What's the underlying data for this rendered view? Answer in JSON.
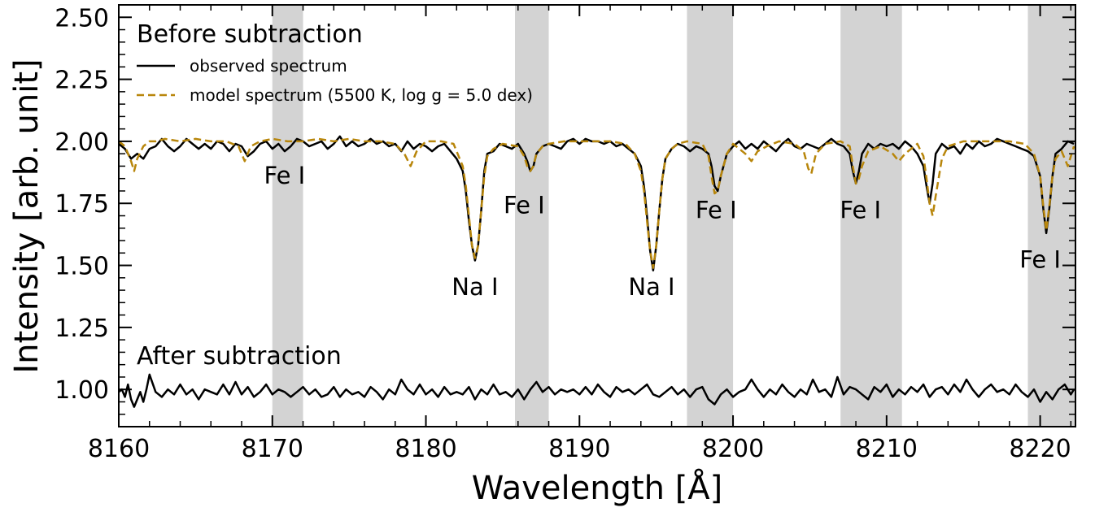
{
  "chart_data": {
    "type": "line",
    "xlabel": "Wavelength [Å]",
    "ylabel": "Intensity [arb. unit]",
    "xlim": [
      8160,
      8222.3
    ],
    "ylim": [
      0.85,
      2.55
    ],
    "x_ticks": [
      "8160",
      "8170",
      "8180",
      "8190",
      "8200",
      "8210",
      "8220"
    ],
    "x_tick_values": [
      8160,
      8170,
      8180,
      8190,
      8200,
      8210,
      8220
    ],
    "y_ticks": [
      "1.00",
      "1.25",
      "1.50",
      "1.75",
      "2.00",
      "2.25",
      "2.50"
    ],
    "y_tick_values": [
      1.0,
      1.25,
      1.5,
      1.75,
      2.0,
      2.25,
      2.5
    ],
    "grid": false,
    "legend_position": "top-left",
    "panel_labels": {
      "before": "Before subtraction",
      "after": "After subtraction"
    },
    "shaded_bands": [
      {
        "x0": 8170.0,
        "x1": 8172.0
      },
      {
        "x0": 8185.8,
        "x1": 8188.0
      },
      {
        "x0": 8197.0,
        "x1": 8200.0
      },
      {
        "x0": 8207.0,
        "x1": 8211.0
      },
      {
        "x0": 8219.2,
        "x1": 8222.3
      }
    ],
    "line_labels": [
      {
        "text": "Fe I",
        "x": 8170.8,
        "y": 1.83
      },
      {
        "text": "Fe I",
        "x": 8186.4,
        "y": 1.71
      },
      {
        "text": "Fe I",
        "x": 8198.9,
        "y": 1.69
      },
      {
        "text": "Fe I",
        "x": 8208.3,
        "y": 1.69
      },
      {
        "text": "Fe I",
        "x": 8220.0,
        "y": 1.49
      },
      {
        "text": "Na I",
        "x": 8183.2,
        "y": 1.38
      },
      {
        "text": "Na I",
        "x": 8194.7,
        "y": 1.38
      }
    ],
    "series": [
      {
        "name": "observed spectrum",
        "color": "#000000",
        "style": "solid",
        "x": [
          8160.0,
          8160.4,
          8160.8,
          8161.2,
          8161.6,
          8162.0,
          8162.4,
          8162.8,
          8163.2,
          8163.6,
          8164.0,
          8164.4,
          8164.8,
          8165.2,
          8165.6,
          8166.0,
          8166.4,
          8166.8,
          8167.2,
          8167.6,
          8168.0,
          8168.4,
          8168.8,
          8169.2,
          8169.6,
          8170.0,
          8170.4,
          8170.8,
          8171.2,
          8171.6,
          8172.0,
          8172.4,
          8172.8,
          8173.2,
          8173.6,
          8174.0,
          8174.4,
          8174.8,
          8175.2,
          8175.6,
          8176.0,
          8176.4,
          8176.8,
          8177.2,
          8177.6,
          8178.0,
          8178.4,
          8178.8,
          8179.2,
          8179.6,
          8180.0,
          8180.4,
          8180.8,
          8181.2,
          8181.6,
          8182.0,
          8182.4,
          8182.6,
          8182.8,
          8183.0,
          8183.2,
          8183.4,
          8183.6,
          8183.8,
          8184.0,
          8184.4,
          8184.8,
          8185.2,
          8185.6,
          8186.0,
          8186.4,
          8186.6,
          8186.8,
          8187.0,
          8187.2,
          8187.6,
          8188.0,
          8188.4,
          8188.8,
          8189.2,
          8189.6,
          8190.0,
          8190.4,
          8190.8,
          8191.2,
          8191.6,
          8192.0,
          8192.4,
          8192.8,
          8193.2,
          8193.6,
          8194.0,
          8194.2,
          8194.4,
          8194.6,
          8194.8,
          8195.0,
          8195.2,
          8195.4,
          8195.6,
          8196.0,
          8196.4,
          8196.8,
          8197.2,
          8197.6,
          8198.0,
          8198.4,
          8198.6,
          8198.8,
          8199.0,
          8199.2,
          8199.6,
          8200.0,
          8200.4,
          8200.8,
          8201.2,
          8201.6,
          8202.0,
          8202.4,
          8202.8,
          8203.2,
          8203.6,
          8204.0,
          8204.4,
          8204.8,
          8205.2,
          8205.6,
          8206.0,
          8206.4,
          8206.8,
          8207.2,
          8207.6,
          8207.8,
          8208.0,
          8208.2,
          8208.4,
          8208.8,
          8209.2,
          8209.6,
          8210.0,
          8210.4,
          8210.8,
          8211.2,
          8211.6,
          8212.0,
          8212.4,
          8212.6,
          8212.8,
          8213.0,
          8213.2,
          8213.6,
          8214.0,
          8214.4,
          8214.8,
          8215.2,
          8215.6,
          8216.0,
          8216.4,
          8216.8,
          8217.2,
          8217.6,
          8218.0,
          8218.4,
          8218.8,
          8219.2,
          8219.6,
          8220.0,
          8220.2,
          8220.4,
          8220.6,
          8220.8,
          8221.0,
          8221.4,
          8221.8,
          8222.2
        ],
        "y": [
          1.99,
          1.97,
          1.93,
          1.95,
          1.93,
          1.97,
          1.98,
          2.01,
          1.98,
          1.96,
          1.98,
          2.01,
          1.99,
          1.97,
          1.99,
          1.97,
          2.0,
          1.99,
          1.96,
          1.99,
          1.98,
          1.94,
          1.96,
          1.99,
          2.0,
          1.97,
          1.99,
          1.96,
          1.98,
          2.01,
          2.0,
          1.98,
          1.99,
          2.0,
          1.97,
          1.99,
          2.02,
          1.98,
          2.0,
          1.98,
          1.99,
          2.01,
          1.99,
          2.0,
          1.98,
          1.99,
          1.96,
          2.0,
          1.97,
          1.99,
          1.98,
          1.96,
          1.98,
          1.99,
          1.96,
          1.93,
          1.88,
          1.8,
          1.68,
          1.58,
          1.52,
          1.58,
          1.72,
          1.88,
          1.95,
          1.96,
          1.99,
          1.98,
          1.97,
          1.99,
          1.95,
          1.92,
          1.88,
          1.9,
          1.95,
          1.98,
          1.99,
          1.98,
          1.97,
          2.0,
          2.01,
          1.99,
          2.01,
          2.0,
          2.0,
          1.99,
          2.0,
          1.98,
          1.99,
          1.97,
          1.95,
          1.9,
          1.82,
          1.7,
          1.56,
          1.48,
          1.58,
          1.72,
          1.85,
          1.93,
          1.97,
          1.99,
          1.98,
          1.96,
          1.98,
          1.97,
          1.95,
          1.9,
          1.82,
          1.8,
          1.86,
          1.95,
          1.98,
          2.0,
          1.97,
          1.99,
          1.97,
          2.0,
          1.98,
          1.96,
          1.99,
          2.01,
          1.98,
          1.97,
          1.99,
          1.98,
          1.97,
          1.99,
          2.01,
          1.99,
          1.98,
          1.95,
          1.88,
          1.83,
          1.88,
          1.95,
          1.99,
          1.97,
          1.99,
          1.98,
          1.99,
          1.97,
          2.0,
          1.98,
          1.95,
          1.9,
          1.82,
          1.75,
          1.83,
          1.95,
          1.99,
          1.97,
          1.98,
          1.95,
          1.99,
          1.97,
          2.0,
          1.98,
          1.99,
          2.01,
          2.0,
          1.99,
          1.98,
          1.97,
          1.96,
          1.94,
          1.86,
          1.73,
          1.63,
          1.73,
          1.86,
          1.95,
          1.97,
          2.0,
          1.99
        ]
      },
      {
        "name": "model spectrum (5500 K, log g = 5.0 dex)",
        "color": "#B8860B",
        "style": "dashed",
        "x": [
          8160.0,
          8160.4,
          8160.8,
          8161.0,
          8161.2,
          8161.6,
          8162.0,
          8162.4,
          8163.0,
          8164.0,
          8165.0,
          8166.0,
          8167.0,
          8167.8,
          8168.2,
          8168.6,
          8169.2,
          8170.0,
          8171.0,
          8172.0,
          8173.0,
          8174.0,
          8175.0,
          8176.0,
          8177.0,
          8178.0,
          8178.6,
          8179.0,
          8179.4,
          8180.0,
          8181.0,
          8181.8,
          8182.4,
          8182.6,
          8182.8,
          8183.0,
          8183.2,
          8183.4,
          8183.6,
          8183.8,
          8184.0,
          8184.4,
          8185.0,
          8186.0,
          8186.4,
          8186.6,
          8186.8,
          8187.0,
          8187.2,
          8187.6,
          8188.0,
          8189.0,
          8190.0,
          8191.0,
          8192.0,
          8193.0,
          8193.6,
          8194.0,
          8194.2,
          8194.4,
          8194.6,
          8194.8,
          8195.0,
          8195.2,
          8195.4,
          8195.6,
          8196.0,
          8196.4,
          8197.0,
          8198.0,
          8198.4,
          8198.6,
          8198.8,
          8199.0,
          8199.2,
          8199.6,
          8200.0,
          8200.8,
          8201.2,
          8201.6,
          8202.2,
          8203.0,
          8204.0,
          8204.6,
          8204.9,
          8205.1,
          8205.4,
          8206.0,
          8207.0,
          8207.6,
          8207.8,
          8208.0,
          8208.2,
          8208.4,
          8208.8,
          8209.6,
          8210.4,
          8210.8,
          8211.2,
          8212.0,
          8212.4,
          8212.6,
          8212.8,
          8213.0,
          8213.2,
          8213.6,
          8214.0,
          8215.0,
          8216.0,
          8217.0,
          8218.0,
          8219.0,
          8219.6,
          8220.0,
          8220.2,
          8220.4,
          8220.6,
          8220.8,
          8221.0,
          8221.4,
          8221.8,
          8222.2
        ],
        "y": [
          2.0,
          1.98,
          1.92,
          1.88,
          1.93,
          1.98,
          2.0,
          2.0,
          2.01,
          2.0,
          2.01,
          2.0,
          2.0,
          1.98,
          1.92,
          1.98,
          2.0,
          2.01,
          2.0,
          2.0,
          2.01,
          2.0,
          2.01,
          2.0,
          2.0,
          1.99,
          1.95,
          1.9,
          1.96,
          2.0,
          2.0,
          1.99,
          1.9,
          1.82,
          1.7,
          1.58,
          1.53,
          1.58,
          1.72,
          1.86,
          1.94,
          1.97,
          1.99,
          1.98,
          1.94,
          1.9,
          1.88,
          1.9,
          1.95,
          1.98,
          1.99,
          2.0,
          2.0,
          2.0,
          2.0,
          1.99,
          1.95,
          1.88,
          1.8,
          1.68,
          1.56,
          1.49,
          1.58,
          1.72,
          1.85,
          1.93,
          1.97,
          1.99,
          2.0,
          1.99,
          1.94,
          1.86,
          1.79,
          1.8,
          1.86,
          1.95,
          1.99,
          1.95,
          1.92,
          1.96,
          1.98,
          2.0,
          1.99,
          1.96,
          1.89,
          1.87,
          1.95,
          1.99,
          2.0,
          1.98,
          1.9,
          1.83,
          1.85,
          1.9,
          1.96,
          1.98,
          1.95,
          1.92,
          1.95,
          1.99,
          1.94,
          1.85,
          1.75,
          1.7,
          1.78,
          1.93,
          1.98,
          2.0,
          2.0,
          2.0,
          2.0,
          1.99,
          1.95,
          1.86,
          1.74,
          1.64,
          1.74,
          1.86,
          1.93,
          1.96,
          1.9,
          1.98
        ]
      },
      {
        "name": "",
        "color": "#000000",
        "style": "solid",
        "x": [
          8160.0,
          8160.2,
          8160.4,
          8160.6,
          8160.8,
          8161.0,
          8161.2,
          8161.4,
          8161.6,
          8161.8,
          8162.0,
          8162.4,
          8162.8,
          8163.2,
          8163.6,
          8164.0,
          8164.4,
          8164.8,
          8165.2,
          8165.6,
          8166.0,
          8166.4,
          8166.8,
          8167.2,
          8167.6,
          8168.0,
          8168.4,
          8168.8,
          8169.2,
          8169.6,
          8170.0,
          8170.4,
          8170.8,
          8171.2,
          8171.6,
          8172.0,
          8172.4,
          8172.8,
          8173.2,
          8173.6,
          8174.0,
          8174.4,
          8174.8,
          8175.2,
          8175.6,
          8176.0,
          8176.4,
          8176.8,
          8177.2,
          8177.6,
          8178.0,
          8178.4,
          8178.8,
          8179.2,
          8179.6,
          8180.0,
          8180.4,
          8180.8,
          8181.2,
          8181.6,
          8182.0,
          8182.4,
          8182.8,
          8183.2,
          8183.6,
          8184.0,
          8184.4,
          8184.8,
          8185.2,
          8185.6,
          8186.0,
          8186.4,
          8186.8,
          8187.2,
          8187.6,
          8188.0,
          8188.4,
          8188.8,
          8189.2,
          8189.6,
          8190.0,
          8190.4,
          8190.8,
          8191.2,
          8191.6,
          8192.0,
          8192.4,
          8192.8,
          8193.2,
          8193.6,
          8194.0,
          8194.4,
          8194.8,
          8195.2,
          8195.6,
          8196.0,
          8196.4,
          8196.8,
          8197.2,
          8197.6,
          8198.0,
          8198.4,
          8198.8,
          8199.2,
          8199.6,
          8200.0,
          8200.4,
          8200.8,
          8201.2,
          8201.6,
          8202.0,
          8202.4,
          8202.8,
          8203.2,
          8203.6,
          8204.0,
          8204.4,
          8204.8,
          8205.2,
          8205.6,
          8206.0,
          8206.4,
          8206.8,
          8207.2,
          8207.6,
          8208.0,
          8208.4,
          8208.8,
          8209.2,
          8209.6,
          8210.0,
          8210.4,
          8210.8,
          8211.2,
          8211.6,
          8212.0,
          8212.4,
          8212.8,
          8213.2,
          8213.6,
          8214.0,
          8214.4,
          8214.8,
          8215.2,
          8215.6,
          8216.0,
          8216.4,
          8216.8,
          8217.2,
          8217.6,
          8218.0,
          8218.4,
          8218.8,
          8219.2,
          8219.6,
          8220.0,
          8220.4,
          8220.8,
          8221.2,
          8221.6,
          8222.0,
          8222.2
        ],
        "y": [
          0.99,
          1.0,
          0.97,
          1.02,
          0.96,
          0.93,
          0.96,
          0.99,
          0.95,
          1.0,
          1.06,
          0.99,
          0.97,
          1.0,
          0.98,
          1.02,
          0.98,
          1.0,
          0.96,
          1.0,
          0.99,
          0.98,
          1.02,
          0.98,
          1.03,
          0.98,
          1.01,
          0.97,
          0.99,
          1.02,
          0.98,
          1.0,
          0.99,
          0.97,
          0.99,
          1.01,
          0.98,
          1.0,
          0.97,
          0.98,
          1.01,
          0.97,
          1.0,
          0.98,
          0.99,
          0.97,
          1.01,
          0.99,
          0.96,
          1.0,
          0.98,
          1.04,
          1.0,
          0.98,
          1.02,
          0.98,
          1.0,
          0.97,
          1.01,
          0.98,
          0.99,
          0.98,
          1.01,
          0.96,
          1.0,
          0.98,
          1.02,
          0.98,
          0.99,
          0.97,
          1.0,
          0.96,
          1.0,
          1.03,
          0.99,
          1.01,
          0.98,
          1.0,
          0.99,
          1.0,
          0.98,
          1.01,
          0.98,
          1.02,
          0.99,
          0.97,
          1.01,
          0.99,
          1.0,
          0.98,
          1.0,
          1.02,
          0.98,
          0.97,
          0.99,
          1.01,
          0.98,
          1.0,
          0.97,
          1.0,
          1.01,
          0.96,
          0.94,
          0.98,
          1.0,
          0.97,
          0.99,
          1.0,
          1.04,
          1.0,
          0.97,
          1.0,
          0.98,
          1.02,
          0.99,
          0.97,
          1.0,
          0.98,
          1.04,
          0.99,
          1.0,
          0.97,
          1.05,
          0.98,
          1.01,
          1.0,
          0.98,
          0.96,
          1.01,
          0.99,
          1.02,
          0.97,
          1.0,
          0.98,
          1.01,
          0.99,
          1.02,
          0.97,
          1.0,
          1.01,
          0.98,
          1.02,
          0.99,
          1.04,
          1.0,
          0.97,
          1.0,
          1.02,
          0.99,
          1.0,
          0.98,
          1.02,
          0.99,
          0.97,
          1.0,
          0.95,
          0.99,
          0.96,
          1.0,
          1.02,
          0.98,
          1.0
        ]
      }
    ]
  }
}
